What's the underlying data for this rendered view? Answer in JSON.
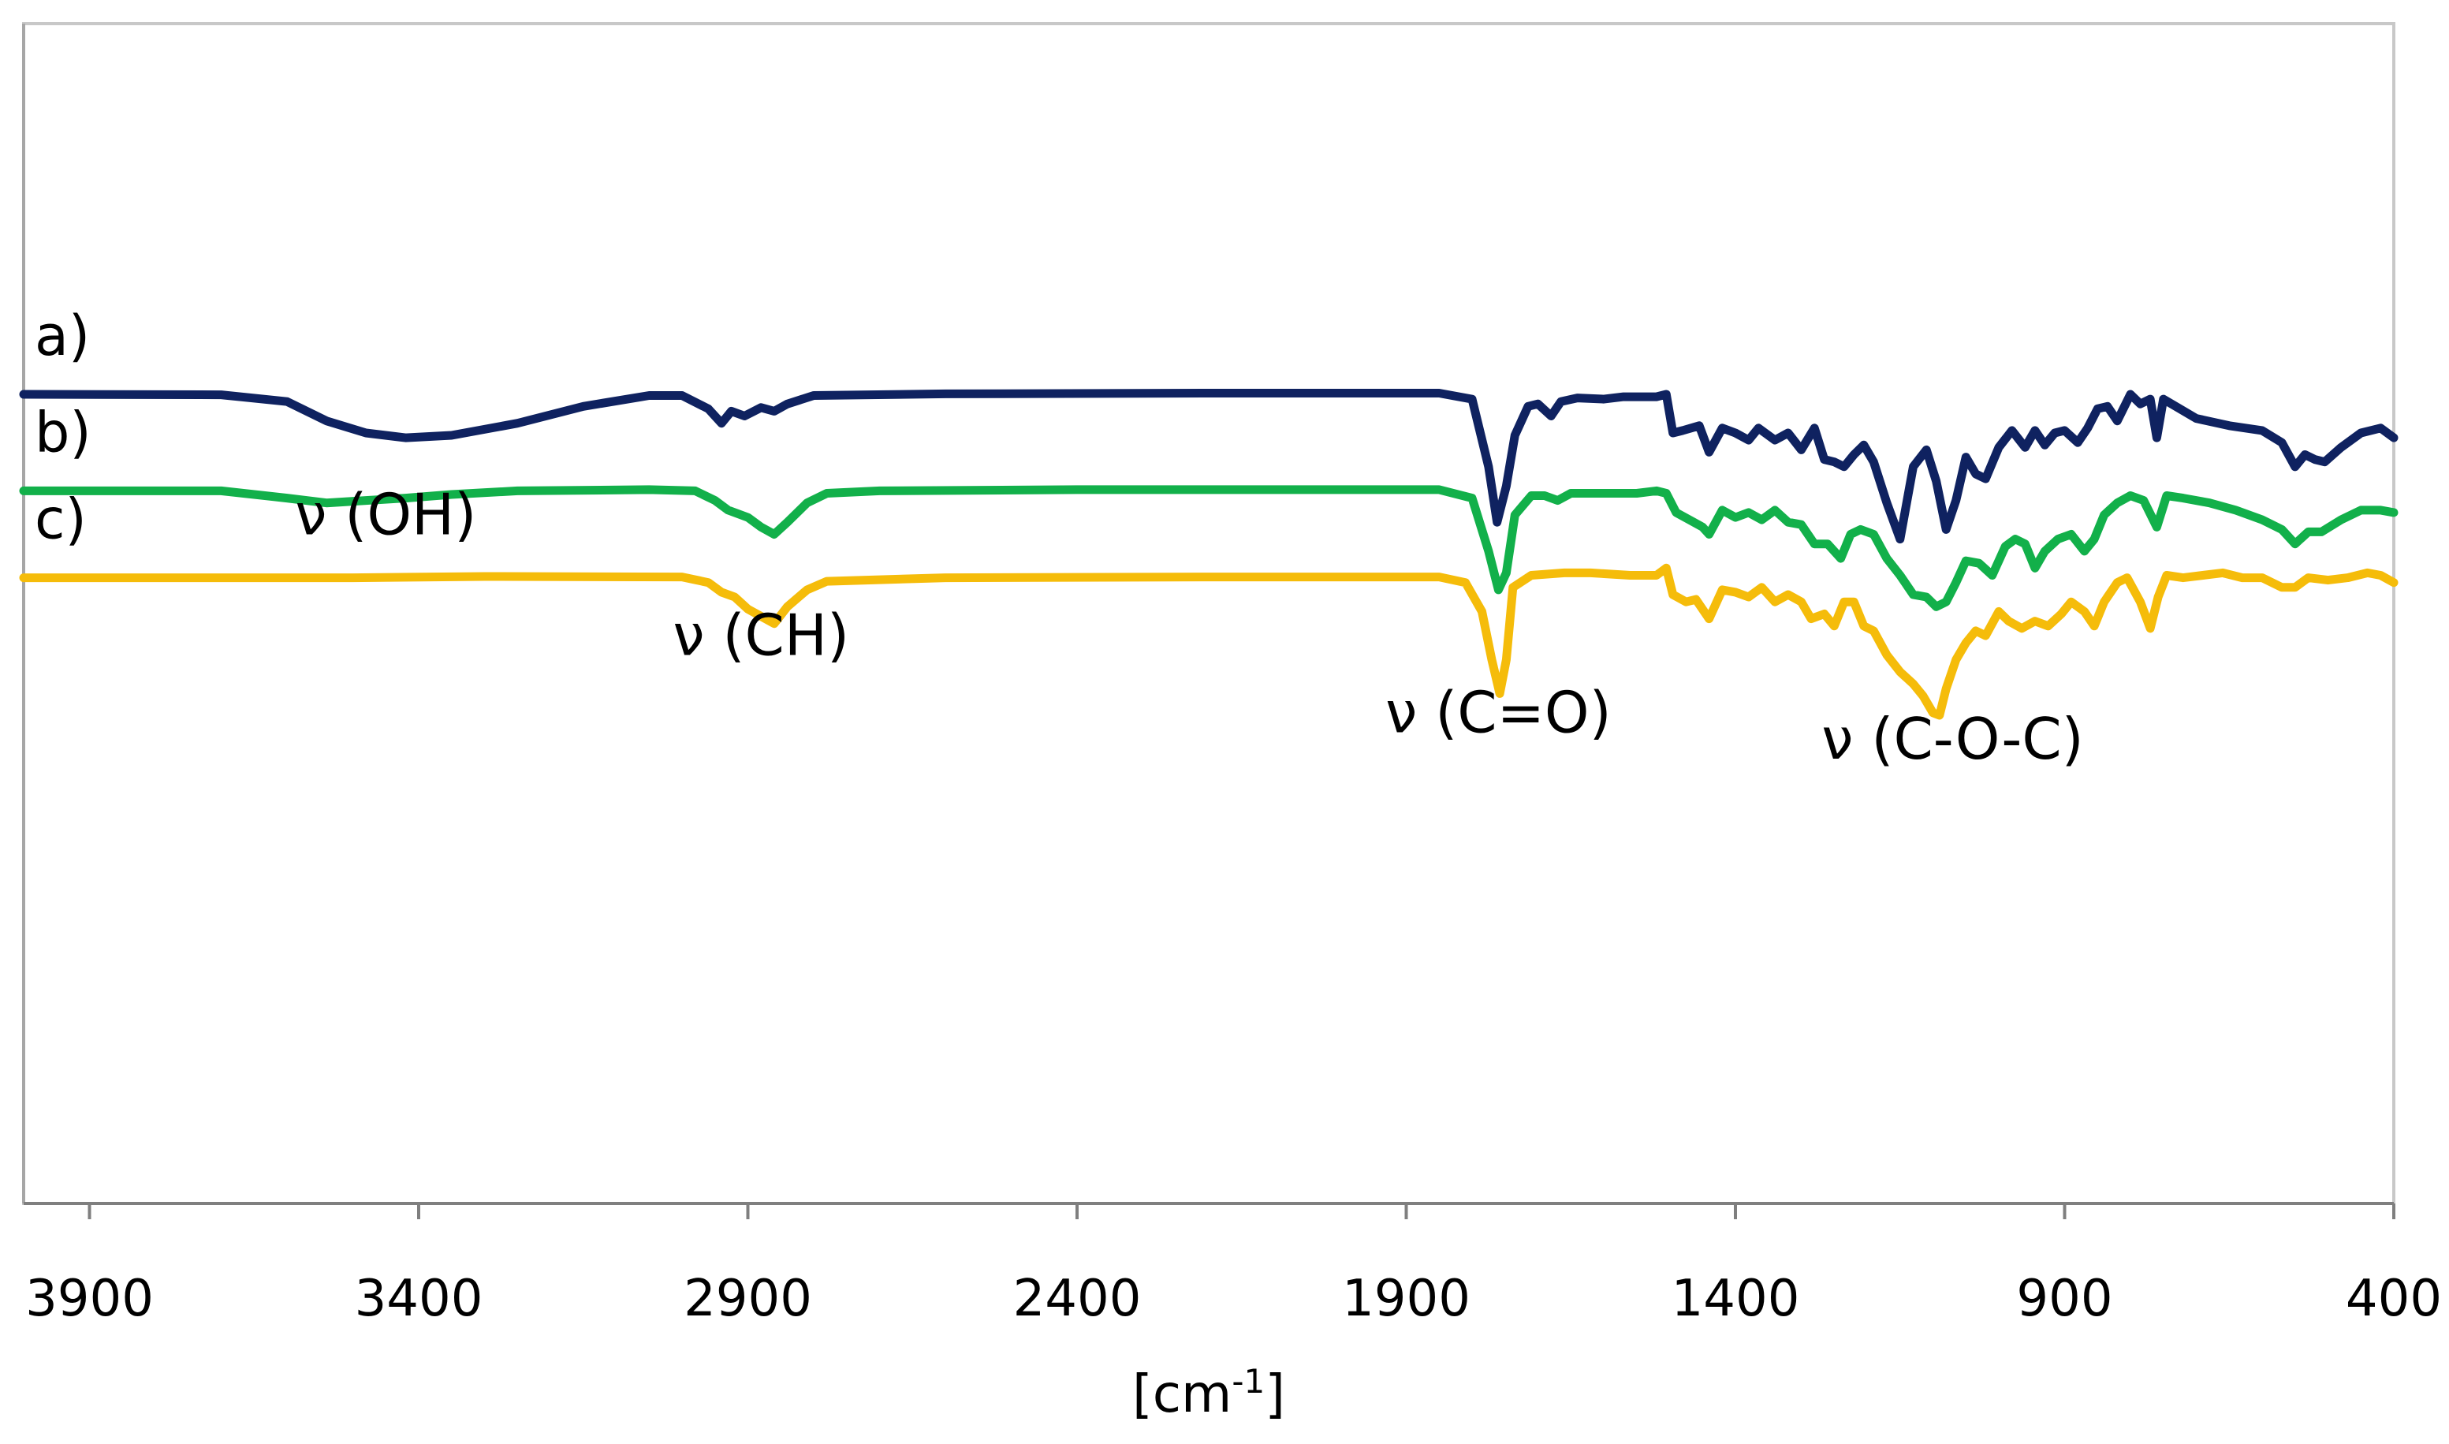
{
  "chart_data": {
    "type": "line",
    "title": "",
    "xlabel": "[cm-1]",
    "xlabel_base": "[cm",
    "xlabel_sup": "-1",
    "xlabel_end": "]",
    "ylabel": "",
    "xlim": [
      4000,
      400
    ],
    "x_reversed": true,
    "y_axis_visible": false,
    "grid": false,
    "x_ticks": [
      3900,
      3400,
      2900,
      2400,
      1900,
      1400,
      900,
      400
    ],
    "series": [
      {
        "name": "a)",
        "color": "#0f2260",
        "baseline": 100,
        "points": [
          [
            4000,
            100
          ],
          [
            3700,
            99.8
          ],
          [
            3600,
            97
          ],
          [
            3540,
            89
          ],
          [
            3480,
            84
          ],
          [
            3420,
            82
          ],
          [
            3350,
            83
          ],
          [
            3250,
            88
          ],
          [
            3150,
            95
          ],
          [
            3050,
            99.5
          ],
          [
            3000,
            99.5
          ],
          [
            2960,
            94
          ],
          [
            2940,
            88
          ],
          [
            2925,
            93
          ],
          [
            2905,
            91
          ],
          [
            2880,
            94.5
          ],
          [
            2860,
            93
          ],
          [
            2840,
            96
          ],
          [
            2800,
            99.5
          ],
          [
            2600,
            100.2
          ],
          [
            2200,
            100.5
          ],
          [
            1850,
            100.5
          ],
          [
            1800,
            98
          ],
          [
            1775,
            70
          ],
          [
            1762,
            47
          ],
          [
            1748,
            62
          ],
          [
            1735,
            83
          ],
          [
            1715,
            95
          ],
          [
            1700,
            96
          ],
          [
            1680,
            91
          ],
          [
            1665,
            97
          ],
          [
            1640,
            98.5
          ],
          [
            1600,
            98
          ],
          [
            1570,
            99
          ],
          [
            1520,
            99
          ],
          [
            1505,
            100
          ],
          [
            1495,
            84
          ],
          [
            1480,
            85
          ],
          [
            1455,
            87
          ],
          [
            1440,
            76
          ],
          [
            1420,
            86
          ],
          [
            1400,
            84
          ],
          [
            1380,
            81
          ],
          [
            1365,
            86
          ],
          [
            1340,
            81
          ],
          [
            1320,
            84
          ],
          [
            1300,
            77
          ],
          [
            1280,
            86
          ],
          [
            1265,
            73
          ],
          [
            1250,
            72
          ],
          [
            1235,
            70
          ],
          [
            1220,
            75
          ],
          [
            1205,
            79
          ],
          [
            1190,
            72
          ],
          [
            1170,
            55
          ],
          [
            1150,
            40
          ],
          [
            1130,
            70
          ],
          [
            1110,
            77
          ],
          [
            1095,
            64
          ],
          [
            1080,
            44
          ],
          [
            1065,
            56
          ],
          [
            1050,
            74
          ],
          [
            1035,
            67
          ],
          [
            1020,
            65
          ],
          [
            1000,
            78
          ],
          [
            980,
            85
          ],
          [
            960,
            78
          ],
          [
            945,
            85
          ],
          [
            930,
            79
          ],
          [
            915,
            84
          ],
          [
            900,
            85
          ],
          [
            880,
            80
          ],
          [
            865,
            86
          ],
          [
            850,
            94
          ],
          [
            835,
            95
          ],
          [
            820,
            89
          ],
          [
            800,
            100
          ],
          [
            785,
            96
          ],
          [
            770,
            98
          ],
          [
            760,
            82
          ],
          [
            750,
            98
          ],
          [
            700,
            90
          ],
          [
            650,
            87
          ],
          [
            600,
            85
          ],
          [
            570,
            80
          ],
          [
            550,
            70
          ],
          [
            535,
            75
          ],
          [
            520,
            73
          ],
          [
            505,
            72
          ],
          [
            480,
            78
          ],
          [
            450,
            84
          ],
          [
            420,
            86
          ],
          [
            400,
            82
          ]
        ]
      },
      {
        "name": "b)",
        "color": "#12b04a",
        "baseline": 60,
        "points": [
          [
            4000,
            60
          ],
          [
            3700,
            60
          ],
          [
            3600,
            57
          ],
          [
            3540,
            55
          ],
          [
            3480,
            56
          ],
          [
            3420,
            57
          ],
          [
            3350,
            58.5
          ],
          [
            3250,
            60
          ],
          [
            3050,
            60.5
          ],
          [
            2980,
            60
          ],
          [
            2950,
            56
          ],
          [
            2930,
            52
          ],
          [
            2900,
            49
          ],
          [
            2880,
            45
          ],
          [
            2860,
            42
          ],
          [
            2840,
            47
          ],
          [
            2810,
            55
          ],
          [
            2780,
            59
          ],
          [
            2700,
            60
          ],
          [
            2400,
            60.5
          ],
          [
            1850,
            60.5
          ],
          [
            1800,
            57
          ],
          [
            1775,
            35
          ],
          [
            1760,
            19
          ],
          [
            1748,
            26
          ],
          [
            1735,
            50
          ],
          [
            1710,
            58
          ],
          [
            1690,
            58
          ],
          [
            1670,
            56
          ],
          [
            1650,
            59
          ],
          [
            1600,
            59
          ],
          [
            1550,
            59
          ],
          [
            1520,
            60
          ],
          [
            1505,
            59
          ],
          [
            1490,
            51
          ],
          [
            1470,
            48
          ],
          [
            1450,
            45
          ],
          [
            1440,
            42
          ],
          [
            1420,
            52
          ],
          [
            1400,
            49
          ],
          [
            1380,
            51
          ],
          [
            1360,
            48
          ],
          [
            1340,
            52
          ],
          [
            1320,
            47
          ],
          [
            1300,
            46
          ],
          [
            1280,
            38
          ],
          [
            1260,
            38
          ],
          [
            1240,
            32
          ],
          [
            1225,
            42
          ],
          [
            1210,
            44
          ],
          [
            1190,
            42
          ],
          [
            1170,
            32
          ],
          [
            1150,
            25
          ],
          [
            1130,
            17
          ],
          [
            1110,
            16
          ],
          [
            1095,
            12
          ],
          [
            1080,
            14
          ],
          [
            1065,
            22
          ],
          [
            1050,
            31
          ],
          [
            1030,
            30
          ],
          [
            1010,
            25
          ],
          [
            990,
            37
          ],
          [
            975,
            40
          ],
          [
            960,
            38
          ],
          [
            945,
            28
          ],
          [
            930,
            35
          ],
          [
            910,
            40
          ],
          [
            890,
            42
          ],
          [
            870,
            35
          ],
          [
            855,
            40
          ],
          [
            840,
            50
          ],
          [
            820,
            55
          ],
          [
            800,
            58
          ],
          [
            780,
            56
          ],
          [
            760,
            45
          ],
          [
            745,
            58
          ],
          [
            720,
            57
          ],
          [
            680,
            55
          ],
          [
            640,
            52
          ],
          [
            600,
            48
          ],
          [
            570,
            44
          ],
          [
            550,
            38
          ],
          [
            530,
            43
          ],
          [
            510,
            43
          ],
          [
            480,
            48
          ],
          [
            450,
            52
          ],
          [
            420,
            52
          ],
          [
            400,
            51
          ]
        ]
      },
      {
        "name": "c)",
        "color": "#f5bc0a",
        "baseline": 24,
        "points": [
          [
            4000,
            24
          ],
          [
            3500,
            24
          ],
          [
            3300,
            24.5
          ],
          [
            3000,
            24.3
          ],
          [
            2960,
            22
          ],
          [
            2940,
            18
          ],
          [
            2920,
            16
          ],
          [
            2900,
            11
          ],
          [
            2880,
            8
          ],
          [
            2860,
            5
          ],
          [
            2840,
            12
          ],
          [
            2810,
            19
          ],
          [
            2780,
            22.5
          ],
          [
            2600,
            24
          ],
          [
            2200,
            24.3
          ],
          [
            1850,
            24.3
          ],
          [
            1810,
            22
          ],
          [
            1785,
            10
          ],
          [
            1770,
            -10
          ],
          [
            1758,
            -24
          ],
          [
            1748,
            -10
          ],
          [
            1738,
            20
          ],
          [
            1710,
            25
          ],
          [
            1660,
            26
          ],
          [
            1620,
            26
          ],
          [
            1560,
            25
          ],
          [
            1520,
            25
          ],
          [
            1505,
            28
          ],
          [
            1495,
            17
          ],
          [
            1475,
            14
          ],
          [
            1460,
            15
          ],
          [
            1440,
            7
          ],
          [
            1420,
            19
          ],
          [
            1400,
            18
          ],
          [
            1380,
            16
          ],
          [
            1360,
            20
          ],
          [
            1340,
            14
          ],
          [
            1320,
            17
          ],
          [
            1300,
            14
          ],
          [
            1285,
            7
          ],
          [
            1265,
            9
          ],
          [
            1250,
            4
          ],
          [
            1235,
            14
          ],
          [
            1220,
            14
          ],
          [
            1205,
            4
          ],
          [
            1190,
            2
          ],
          [
            1170,
            -8
          ],
          [
            1150,
            -15
          ],
          [
            1130,
            -20
          ],
          [
            1115,
            -25
          ],
          [
            1100,
            -32
          ],
          [
            1090,
            -33
          ],
          [
            1080,
            -22
          ],
          [
            1065,
            -10
          ],
          [
            1050,
            -3
          ],
          [
            1035,
            2
          ],
          [
            1020,
            0
          ],
          [
            1000,
            10
          ],
          [
            985,
            6
          ],
          [
            965,
            3
          ],
          [
            945,
            6
          ],
          [
            925,
            4
          ],
          [
            905,
            9
          ],
          [
            890,
            14
          ],
          [
            870,
            10
          ],
          [
            855,
            4
          ],
          [
            840,
            14
          ],
          [
            820,
            22
          ],
          [
            805,
            24
          ],
          [
            785,
            14
          ],
          [
            770,
            3
          ],
          [
            758,
            16
          ],
          [
            745,
            25
          ],
          [
            720,
            24
          ],
          [
            690,
            25
          ],
          [
            660,
            26
          ],
          [
            630,
            24
          ],
          [
            600,
            24
          ],
          [
            570,
            20
          ],
          [
            550,
            20
          ],
          [
            530,
            24
          ],
          [
            500,
            23
          ],
          [
            470,
            24
          ],
          [
            440,
            26
          ],
          [
            420,
            25
          ],
          [
            400,
            22
          ]
        ]
      }
    ],
    "annotations": [
      {
        "text": "ν (OH)",
        "x": 3450,
        "y": 42
      },
      {
        "text": "ν (CH)",
        "x": 2880,
        "y": -8
      },
      {
        "text": "ν (C=O)",
        "x": 1760,
        "y": -40
      },
      {
        "text": "ν (C-O-C)",
        "x": 1070,
        "y": -51
      }
    ]
  }
}
